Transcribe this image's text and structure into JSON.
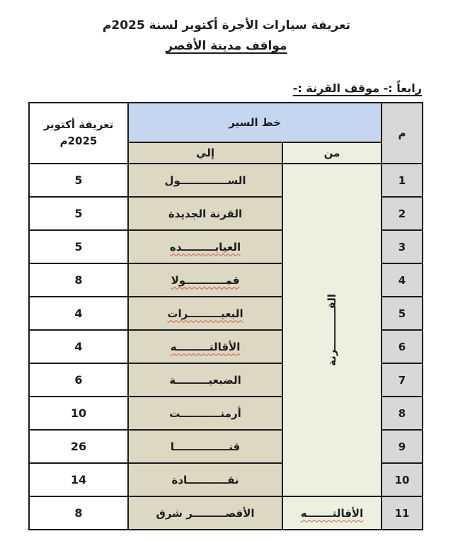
{
  "page": {
    "title": "تعريفة سيارات الأجرة أكتوبر لسنة 2025م",
    "subtitle": "مواقف مدينة الأقصر",
    "section_heading": "رابعاً :- موقف القرنة :-"
  },
  "table": {
    "headers": {
      "index": "م",
      "route": "خط السير",
      "from": "من",
      "to": "إلي",
      "fare_line1": "تعريفة أكتوبر",
      "fare_line2": "2025م"
    },
    "from_merged": "القـــــــــــرنة",
    "merged_from_rowspan": 10,
    "rows": [
      {
        "index": "1",
        "to": "الســـــــــــــول",
        "fare": "5",
        "misspelled": false
      },
      {
        "index": "2",
        "to": "القرنة الجديدة",
        "fare": "5",
        "misspelled": false
      },
      {
        "index": "3",
        "to": "العيابـــــــــده",
        "fare": "5",
        "misspelled": true
      },
      {
        "index": "4",
        "to": "قمـــــــــــولا",
        "fare": "8",
        "misspelled": true
      },
      {
        "index": "5",
        "to": "البعيـــــــــرات",
        "fare": "4",
        "misspelled": true
      },
      {
        "index": "6",
        "to": "الأقالتـــــــــه",
        "fare": "4",
        "misspelled": true
      },
      {
        "index": "7",
        "to": "الضبعيـــــــــة",
        "fare": "6",
        "misspelled": false
      },
      {
        "index": "8",
        "to": "أرمنـــــــــــت",
        "fare": "10",
        "misspelled": false
      },
      {
        "index": "9",
        "to": "قنـــــــــــــــا",
        "fare": "26",
        "misspelled": false
      },
      {
        "index": "10",
        "to": "نقـــــــــــادة",
        "fare": "14",
        "misspelled": false
      },
      {
        "index": "11",
        "to": "الأقصـــــــــر شرق",
        "fare": "8",
        "misspelled": false,
        "from": "الأقالتـــــــه",
        "from_misspelled": true
      }
    ],
    "colors": {
      "route_header_bg": "#c5d7f0",
      "to_column_bg": "#ddd8c2",
      "from_column_bg": "#ecf1df",
      "index_column_bg": "#d8d8d8",
      "fare_column_bg": "#ffffff",
      "border": "#1b1b1b",
      "squiggle": "#cb5a4a"
    }
  }
}
